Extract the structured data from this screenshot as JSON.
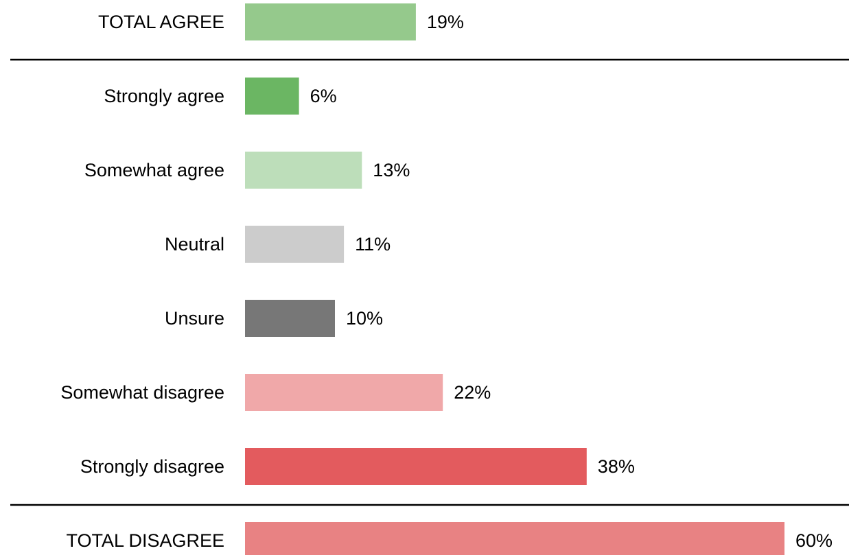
{
  "chart_data": {
    "type": "bar",
    "orientation": "horizontal",
    "categories": [
      "TOTAL AGREE",
      "Strongly agree",
      "Somewhat agree",
      "Neutral",
      "Unsure",
      "Somewhat disagree",
      "Strongly disagree",
      "TOTAL DISAGREE"
    ],
    "values": [
      19,
      6,
      13,
      11,
      10,
      22,
      38,
      60
    ],
    "value_labels": [
      "19%",
      "6%",
      "13%",
      "11%",
      "10%",
      "22%",
      "38%",
      "60%"
    ],
    "colors": [
      "#95c98c",
      "#6bb663",
      "#bddeba",
      "#cccccc",
      "#777777",
      "#f0a8a9",
      "#e35b5e",
      "#e88283"
    ],
    "unit": "%",
    "grid": false,
    "legend": "none",
    "xlim": [
      0,
      60
    ]
  }
}
